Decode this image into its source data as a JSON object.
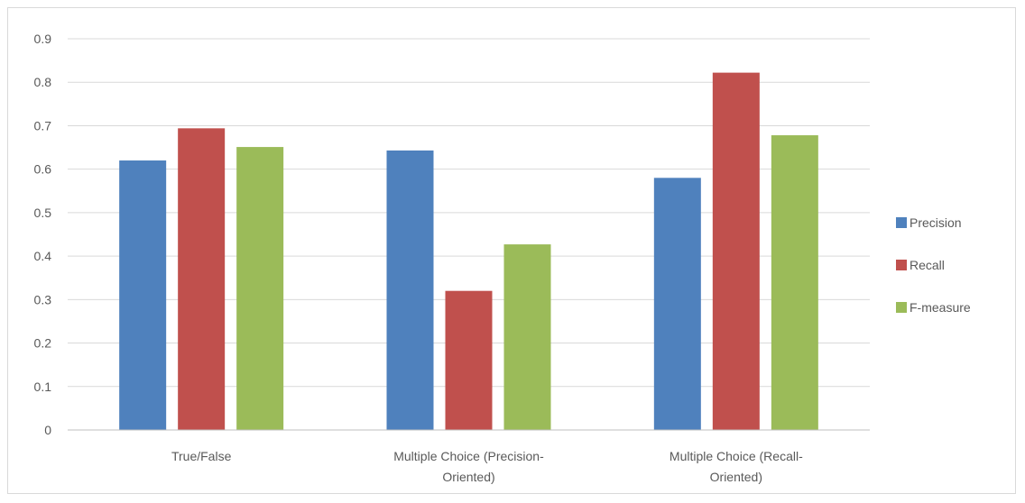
{
  "chart_data": {
    "type": "bar",
    "categories": [
      [
        "True/False"
      ],
      [
        "Multiple Choice (Precision-",
        "Oriented)"
      ],
      [
        "Multiple Choice (Recall-",
        "Oriented)"
      ]
    ],
    "series": [
      {
        "name": "Precision",
        "color": "#4f81bd",
        "values": [
          0.62,
          0.643,
          0.58
        ]
      },
      {
        "name": "Recall",
        "color": "#c0504d",
        "values": [
          0.694,
          0.32,
          0.822
        ]
      },
      {
        "name": "F-measure",
        "color": "#9bbb59",
        "values": [
          0.651,
          0.427,
          0.678
        ]
      }
    ],
    "y_ticks": [
      "0",
      "0.1",
      "0.2",
      "0.3",
      "0.4",
      "0.5",
      "0.6",
      "0.7",
      "0.8",
      "0.9"
    ],
    "ylim": [
      0,
      0.9
    ],
    "grid": true,
    "legend_position": "right",
    "title": "",
    "xlabel": "",
    "ylabel": ""
  }
}
